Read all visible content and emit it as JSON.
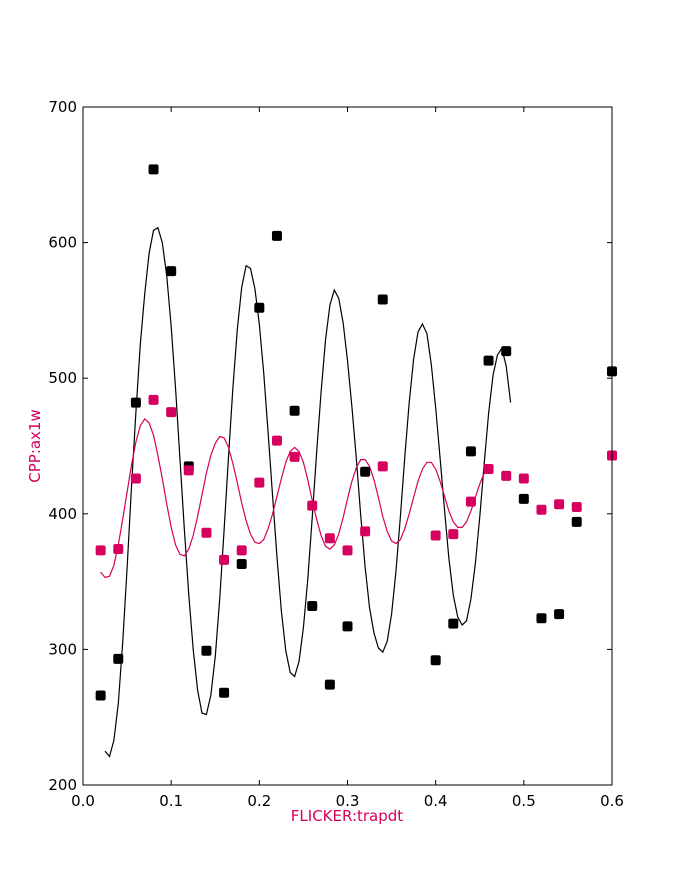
{
  "chart_data": {
    "type": "scatter",
    "title": "",
    "xlabel": "FLICKER:trapdt",
    "ylabel": "CPP:ax1w",
    "xlim": [
      0.0,
      0.6
    ],
    "ylim": [
      200,
      700
    ],
    "xticks": [
      "0.0",
      "0.1",
      "0.2",
      "0.3",
      "0.4",
      "0.5",
      "0.6"
    ],
    "yticks": [
      "200",
      "300",
      "400",
      "500",
      "600",
      "700"
    ],
    "grid": false,
    "legend": "none",
    "colors": {
      "label": "#d6005f",
      "black_series": "#000000",
      "magenta_series": "#d6005f",
      "axes": "#000000"
    },
    "series": [
      {
        "color": "#000000",
        "marker": "square",
        "points": [
          [
            0.02,
            266
          ],
          [
            0.04,
            293
          ],
          [
            0.06,
            482
          ],
          [
            0.08,
            654
          ],
          [
            0.1,
            579
          ],
          [
            0.12,
            435
          ],
          [
            0.14,
            299
          ],
          [
            0.16,
            268
          ],
          [
            0.18,
            363
          ],
          [
            0.2,
            552
          ],
          [
            0.22,
            605
          ],
          [
            0.24,
            476
          ],
          [
            0.26,
            332
          ],
          [
            0.28,
            274
          ],
          [
            0.3,
            317
          ],
          [
            0.32,
            431
          ],
          [
            0.34,
            558
          ],
          [
            0.4,
            292
          ],
          [
            0.42,
            319
          ],
          [
            0.44,
            446
          ],
          [
            0.46,
            513
          ],
          [
            0.48,
            520
          ],
          [
            0.5,
            411
          ],
          [
            0.52,
            323
          ],
          [
            0.54,
            326
          ],
          [
            0.56,
            394
          ],
          [
            0.6,
            505
          ]
        ],
        "fit_curve": [
          [
            0.025,
            225
          ],
          [
            0.03,
            221
          ],
          [
            0.035,
            233
          ],
          [
            0.04,
            260
          ],
          [
            0.045,
            305
          ],
          [
            0.05,
            360
          ],
          [
            0.055,
            420
          ],
          [
            0.06,
            475
          ],
          [
            0.065,
            525
          ],
          [
            0.07,
            562
          ],
          [
            0.075,
            592
          ],
          [
            0.08,
            609
          ],
          [
            0.085,
            611
          ],
          [
            0.09,
            600
          ],
          [
            0.095,
            575
          ],
          [
            0.1,
            538
          ],
          [
            0.105,
            492
          ],
          [
            0.11,
            440
          ],
          [
            0.115,
            388
          ],
          [
            0.12,
            340
          ],
          [
            0.125,
            300
          ],
          [
            0.13,
            270
          ],
          [
            0.135,
            253
          ],
          [
            0.14,
            252
          ],
          [
            0.145,
            266
          ],
          [
            0.15,
            295
          ],
          [
            0.155,
            337
          ],
          [
            0.16,
            388
          ],
          [
            0.165,
            442
          ],
          [
            0.17,
            493
          ],
          [
            0.175,
            536
          ],
          [
            0.18,
            567
          ],
          [
            0.185,
            583
          ],
          [
            0.19,
            581
          ],
          [
            0.195,
            566
          ],
          [
            0.2,
            540
          ],
          [
            0.205,
            504
          ],
          [
            0.21,
            460
          ],
          [
            0.215,
            413
          ],
          [
            0.22,
            368
          ],
          [
            0.225,
            328
          ],
          [
            0.23,
            299
          ],
          [
            0.235,
            283
          ],
          [
            0.24,
            280
          ],
          [
            0.245,
            291
          ],
          [
            0.25,
            316
          ],
          [
            0.255,
            352
          ],
          [
            0.26,
            397
          ],
          [
            0.265,
            445
          ],
          [
            0.27,
            490
          ],
          [
            0.275,
            528
          ],
          [
            0.28,
            554
          ],
          [
            0.285,
            565
          ],
          [
            0.29,
            559
          ],
          [
            0.295,
            541
          ],
          [
            0.3,
            513
          ],
          [
            0.305,
            479
          ],
          [
            0.31,
            441
          ],
          [
            0.315,
            399
          ],
          [
            0.32,
            361
          ],
          [
            0.325,
            331
          ],
          [
            0.33,
            312
          ],
          [
            0.335,
            301
          ],
          [
            0.34,
            298
          ],
          [
            0.345,
            306
          ],
          [
            0.35,
            326
          ],
          [
            0.355,
            358
          ],
          [
            0.36,
            398
          ],
          [
            0.365,
            442
          ],
          [
            0.37,
            482
          ],
          [
            0.375,
            514
          ],
          [
            0.38,
            534
          ],
          [
            0.385,
            540
          ],
          [
            0.39,
            533
          ],
          [
            0.395,
            510
          ],
          [
            0.4,
            478
          ],
          [
            0.405,
            441
          ],
          [
            0.41,
            403
          ],
          [
            0.415,
            367
          ],
          [
            0.42,
            340
          ],
          [
            0.425,
            324
          ],
          [
            0.43,
            318
          ],
          [
            0.435,
            321
          ],
          [
            0.44,
            337
          ],
          [
            0.445,
            363
          ],
          [
            0.45,
            398
          ],
          [
            0.455,
            437
          ],
          [
            0.46,
            474
          ],
          [
            0.465,
            502
          ],
          [
            0.47,
            517
          ],
          [
            0.475,
            522
          ],
          [
            0.48,
            509
          ],
          [
            0.485,
            482
          ]
        ]
      },
      {
        "color": "#d6005f",
        "marker": "square",
        "points": [
          [
            0.02,
            373
          ],
          [
            0.04,
            374
          ],
          [
            0.06,
            426
          ],
          [
            0.08,
            484
          ],
          [
            0.1,
            475
          ],
          [
            0.12,
            432
          ],
          [
            0.14,
            386
          ],
          [
            0.16,
            366
          ],
          [
            0.18,
            373
          ],
          [
            0.2,
            423
          ],
          [
            0.22,
            454
          ],
          [
            0.24,
            442
          ],
          [
            0.26,
            406
          ],
          [
            0.28,
            382
          ],
          [
            0.3,
            373
          ],
          [
            0.32,
            387
          ],
          [
            0.34,
            435
          ],
          [
            0.4,
            384
          ],
          [
            0.42,
            385
          ],
          [
            0.44,
            409
          ],
          [
            0.46,
            433
          ],
          [
            0.48,
            428
          ],
          [
            0.5,
            426
          ],
          [
            0.52,
            403
          ],
          [
            0.54,
            407
          ],
          [
            0.56,
            405
          ],
          [
            0.6,
            443
          ]
        ],
        "fit_curve": [
          [
            0.02,
            357
          ],
          [
            0.025,
            353
          ],
          [
            0.03,
            354
          ],
          [
            0.035,
            362
          ],
          [
            0.04,
            377
          ],
          [
            0.045,
            396
          ],
          [
            0.05,
            416
          ],
          [
            0.055,
            436
          ],
          [
            0.06,
            453
          ],
          [
            0.065,
            465
          ],
          [
            0.07,
            470
          ],
          [
            0.075,
            467
          ],
          [
            0.08,
            458
          ],
          [
            0.085,
            443
          ],
          [
            0.09,
            426
          ],
          [
            0.095,
            407
          ],
          [
            0.1,
            390
          ],
          [
            0.105,
            377
          ],
          [
            0.11,
            370
          ],
          [
            0.115,
            369
          ],
          [
            0.12,
            374
          ],
          [
            0.125,
            384
          ],
          [
            0.13,
            398
          ],
          [
            0.135,
            414
          ],
          [
            0.14,
            430
          ],
          [
            0.145,
            443
          ],
          [
            0.15,
            452
          ],
          [
            0.155,
            457
          ],
          [
            0.16,
            456
          ],
          [
            0.165,
            449
          ],
          [
            0.17,
            437
          ],
          [
            0.175,
            423
          ],
          [
            0.18,
            408
          ],
          [
            0.185,
            395
          ],
          [
            0.19,
            385
          ],
          [
            0.195,
            379
          ],
          [
            0.2,
            378
          ],
          [
            0.205,
            381
          ],
          [
            0.21,
            389
          ],
          [
            0.215,
            400
          ],
          [
            0.22,
            413
          ],
          [
            0.225,
            426
          ],
          [
            0.23,
            438
          ],
          [
            0.235,
            446
          ],
          [
            0.24,
            449
          ],
          [
            0.245,
            446
          ],
          [
            0.25,
            438
          ],
          [
            0.255,
            425
          ],
          [
            0.26,
            410
          ],
          [
            0.265,
            396
          ],
          [
            0.27,
            384
          ],
          [
            0.275,
            376
          ],
          [
            0.28,
            374
          ],
          [
            0.285,
            377
          ],
          [
            0.29,
            385
          ],
          [
            0.295,
            397
          ],
          [
            0.3,
            411
          ],
          [
            0.305,
            424
          ],
          [
            0.31,
            434
          ],
          [
            0.315,
            440
          ],
          [
            0.32,
            440
          ],
          [
            0.325,
            435
          ],
          [
            0.33,
            425
          ],
          [
            0.335,
            412
          ],
          [
            0.34,
            398
          ],
          [
            0.345,
            387
          ],
          [
            0.35,
            380
          ],
          [
            0.355,
            378
          ],
          [
            0.36,
            381
          ],
          [
            0.365,
            389
          ],
          [
            0.37,
            400
          ],
          [
            0.375,
            412
          ],
          [
            0.38,
            424
          ],
          [
            0.385,
            433
          ],
          [
            0.39,
            438
          ],
          [
            0.395,
            438
          ],
          [
            0.4,
            433
          ],
          [
            0.405,
            424
          ],
          [
            0.41,
            413
          ],
          [
            0.415,
            402
          ],
          [
            0.42,
            394
          ],
          [
            0.425,
            390
          ],
          [
            0.43,
            390
          ],
          [
            0.435,
            394
          ],
          [
            0.44,
            402
          ],
          [
            0.445,
            412
          ],
          [
            0.45,
            422
          ],
          [
            0.455,
            430
          ],
          [
            0.46,
            430
          ],
          [
            0.465,
            431
          ]
        ]
      }
    ]
  }
}
